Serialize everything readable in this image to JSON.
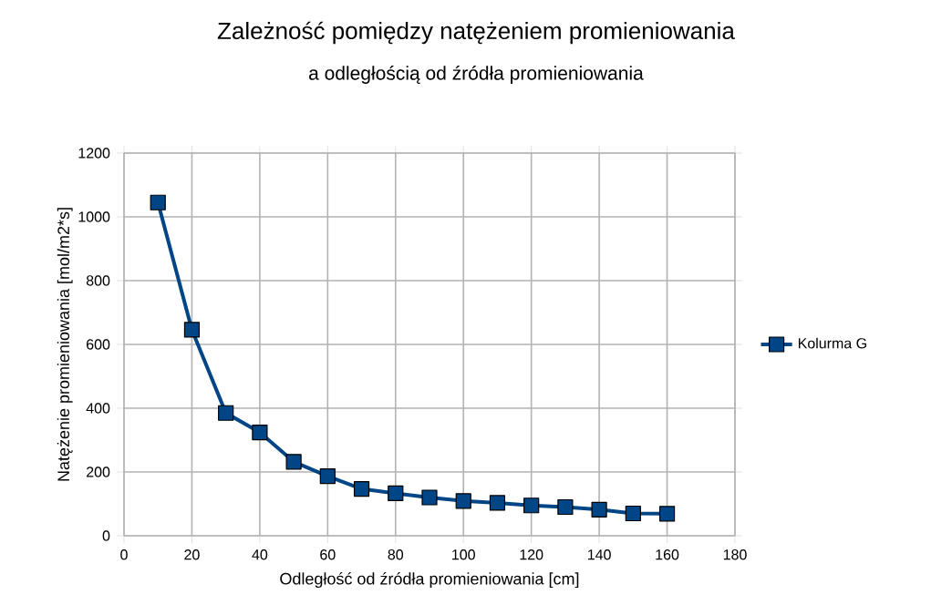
{
  "chart_data": {
    "type": "line",
    "title": "Zależność pomiędzy natężeniem promieniowania",
    "subtitle": "a odległością od źródła promieniowania",
    "xlabel": "Odległość od źródła promieniowania [cm]",
    "ylabel": "Natężenie promieniowania [mol/m2*s]",
    "x": [
      10,
      20,
      30,
      40,
      50,
      60,
      70,
      80,
      90,
      100,
      110,
      120,
      130,
      140,
      150,
      160
    ],
    "series": [
      {
        "name": "Kolurma G",
        "color": "#004586",
        "values": [
          1045,
          646,
          385,
          324,
          232,
          187,
          147,
          133,
          120,
          109,
          103,
          95,
          90,
          82,
          70,
          69
        ]
      }
    ],
    "xlim": [
      0,
      180
    ],
    "xticks": [
      0,
      20,
      40,
      60,
      80,
      100,
      120,
      140,
      160,
      180
    ],
    "ylim": [
      0,
      1200
    ],
    "yticks": [
      0,
      200,
      400,
      600,
      800,
      1000,
      1200
    ],
    "grid": true,
    "legend": "right",
    "marker": "square",
    "line_style": "solid"
  }
}
